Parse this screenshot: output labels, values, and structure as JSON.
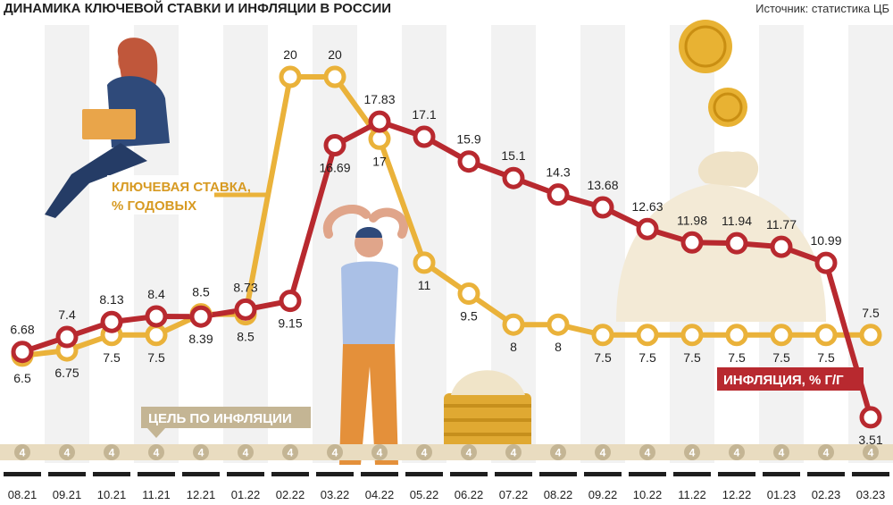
{
  "header": {
    "title": "ДИНАМИКА КЛЮЧЕВОЙ СТАВКИ И ИНФЛЯЦИИ В РОССИИ",
    "source": "Источник: статистика ЦБ"
  },
  "legend": {
    "key_rate_line1": "КЛЮЧЕВАЯ СТАВКА,",
    "key_rate_line2": "% ГОДОВЫХ",
    "inflation": "ИНФЛЯЦИЯ, % Г/Г",
    "target": "ЦЕЛЬ ПО ИНФЛЯЦИИ"
  },
  "colors": {
    "key_rate": "#eab23a",
    "key_rate_dark": "#d79a22",
    "inflation": "#b8292f",
    "target_band": "#e9dcc0",
    "target_circle": "#c4b594",
    "label_box": "#c4b594"
  },
  "chart_data": {
    "type": "line",
    "title": "ДИНАМИКА КЛЮЧЕВОЙ СТАВКИ И ИНФЛЯЦИИ В РОССИИ",
    "categories": [
      "08.21",
      "09.21",
      "10.21",
      "11.21",
      "12.21",
      "01.22",
      "02.22",
      "03.22",
      "04.22",
      "05.22",
      "06.22",
      "07.22",
      "08.22",
      "09.22",
      "10.22",
      "11.22",
      "12.22",
      "01.23",
      "02.23",
      "03.23"
    ],
    "series": [
      {
        "name": "КЛЮЧЕВАЯ СТАВКА, % ГОДОВЫХ",
        "values": [
          6.5,
          6.75,
          7.5,
          7.5,
          8.5,
          8.5,
          20,
          20,
          17,
          11,
          9.5,
          8,
          8,
          7.5,
          7.5,
          7.5,
          7.5,
          7.5,
          7.5,
          7.5
        ],
        "labels": [
          "6.5",
          "6.75",
          "7.5",
          "7.5",
          "8.5",
          "8.5",
          "20",
          "20",
          "17",
          "11",
          "9.5",
          "8",
          "8",
          "7.5",
          "7.5",
          "7.5",
          "7.5",
          "7.5",
          "7.5",
          "7.5"
        ]
      },
      {
        "name": "ИНФЛЯЦИЯ, % Г/Г",
        "values": [
          6.68,
          7.4,
          8.13,
          8.4,
          8.39,
          8.73,
          9.15,
          16.69,
          17.83,
          17.1,
          15.9,
          15.1,
          14.3,
          13.68,
          12.63,
          11.98,
          11.94,
          11.77,
          10.99,
          3.51
        ],
        "labels": [
          "6.68",
          "7.4",
          "8.13",
          "8.4",
          "8.39",
          "8.73",
          "9.15",
          "16.69",
          "17.83",
          "17.1",
          "15.9",
          "15.1",
          "14.3",
          "13.68",
          "12.63",
          "11.98",
          "11.94",
          "11.77",
          "10.99",
          "3.51"
        ]
      }
    ],
    "target": {
      "value": 4,
      "label": "4"
    },
    "grid": false,
    "legend": "inline"
  }
}
